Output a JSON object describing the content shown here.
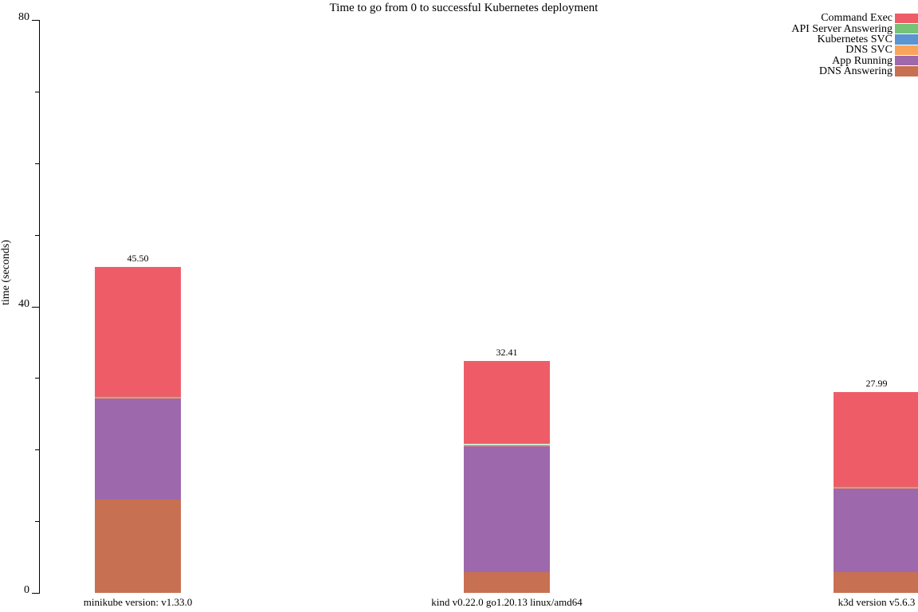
{
  "chart_data": {
    "type": "bar",
    "stacked": true,
    "title": "Time to go from 0 to successful Kubernetes deployment",
    "ylabel": "time (seconds)",
    "ylim": [
      0,
      80
    ],
    "yticks_major": [
      0,
      40,
      80
    ],
    "yticks_minor": [
      10,
      20,
      30,
      50,
      60,
      70
    ],
    "grid": false,
    "legend_position": "top-right",
    "categories": [
      "minikube version: v1.33.0",
      "kind v0.22.0 go1.20.13 linux/amd64",
      "k3d version v5.6.3"
    ],
    "totals_display": [
      "45.50",
      "32.41",
      "27.99"
    ],
    "series": [
      {
        "name": "DNS Answering",
        "color": "#c87052",
        "values": [
          13.0,
          2.9,
          2.9
        ]
      },
      {
        "name": "App Running",
        "color": "#9d68ac",
        "values": [
          14.1,
          17.6,
          11.7
        ]
      },
      {
        "name": "DNS SVC",
        "color": "#f9a45b",
        "values": [
          0.15,
          0.1,
          0.1
        ]
      },
      {
        "name": "Kubernetes SVC",
        "color": "#5b95d1",
        "values": [
          0.1,
          0.1,
          0.08
        ]
      },
      {
        "name": "API Server Answering",
        "color": "#76c276",
        "values": [
          0.05,
          0.05,
          0.05
        ]
      },
      {
        "name": "Command Exec",
        "color": "#ee5d67",
        "values": [
          18.1,
          11.66,
          13.16
        ]
      }
    ],
    "legend_order_top_to_bottom": [
      "Command Exec",
      "API Server Answering",
      "Kubernetes SVC",
      "DNS SVC",
      "App Running",
      "DNS Answering"
    ]
  }
}
